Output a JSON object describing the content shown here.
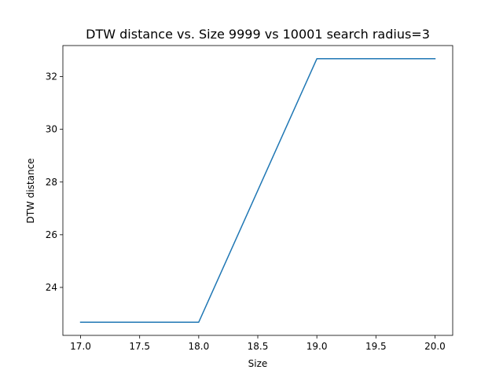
{
  "chart_data": {
    "type": "line",
    "title": "DTW distance vs. Size 9999 vs 10001 search radius=3",
    "xlabel": "Size",
    "ylabel": "DTW distance",
    "x": [
      17,
      18,
      19,
      20
    ],
    "series": [
      {
        "values": [
          22.68,
          22.68,
          32.68,
          32.68
        ],
        "color": "#1f77b4"
      }
    ],
    "xlim": [
      16.85,
      20.15
    ],
    "ylim": [
      22.18,
      33.18
    ],
    "xticks": [
      17.0,
      17.5,
      18.0,
      18.5,
      19.0,
      19.5,
      20.0
    ],
    "xtick_labels": [
      "17.0",
      "17.5",
      "18.0",
      "18.5",
      "19.0",
      "19.5",
      "20.0"
    ],
    "yticks": [
      24,
      26,
      28,
      30,
      32
    ],
    "ytick_labels": [
      "24",
      "26",
      "28",
      "30",
      "32"
    ],
    "grid": false,
    "legend": "none"
  }
}
